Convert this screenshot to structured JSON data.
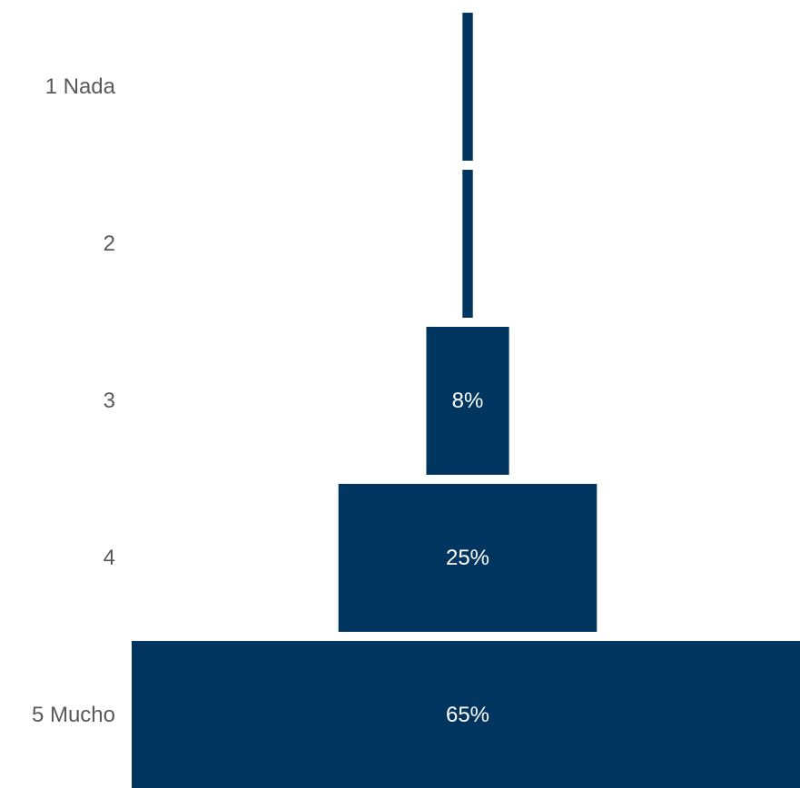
{
  "chart_data": {
    "type": "bar",
    "orientation": "horizontal",
    "style": "funnel",
    "categories": [
      "1 Nada",
      "2",
      "3",
      "4",
      "5 Mucho"
    ],
    "values": [
      1,
      1,
      8,
      25,
      65
    ],
    "data_labels": [
      "",
      "",
      "8%",
      "25%",
      "65%"
    ],
    "unit": "%",
    "xlim": [
      0,
      65
    ],
    "grid": false,
    "legend": "none",
    "bar_color": "#003560",
    "label_color": "#595959",
    "data_label_color": "#ffffff"
  }
}
